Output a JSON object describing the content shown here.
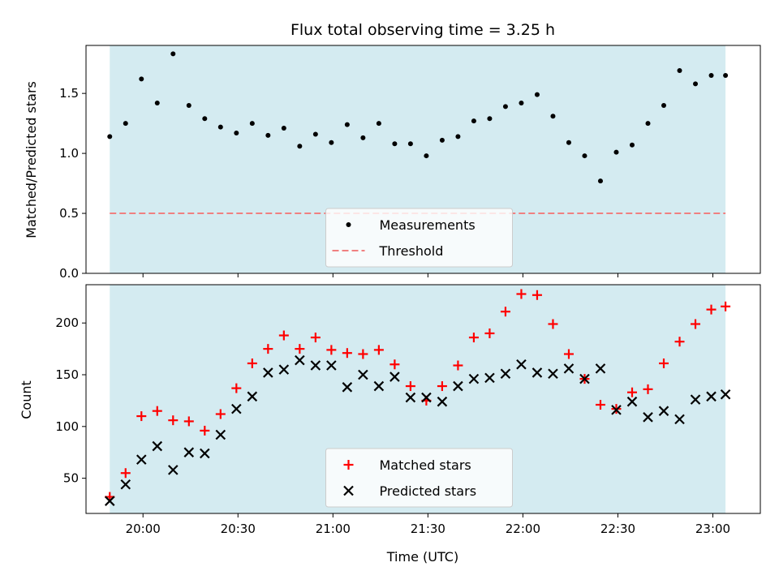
{
  "chart_data": {
    "title": "Flux total observing time = 3.25 h",
    "xlabel": "Time (UTC)",
    "x_ticks": [
      "20:00",
      "20:30",
      "21:00",
      "21:30",
      "22:00",
      "22:30",
      "23:00"
    ],
    "x_tick_minutes": [
      1200,
      1230,
      1260,
      1290,
      1320,
      1350,
      1380
    ],
    "xlim": [
      1182,
      1395
    ],
    "shaded_span": [
      1189.5,
      1384
    ],
    "shade_color": "#d4ebf1",
    "x": [
      1189.5,
      1194.5,
      1199.5,
      1204.5,
      1209.5,
      1214.5,
      1219.5,
      1224.5,
      1229.5,
      1234.5,
      1239.5,
      1244.5,
      1249.5,
      1254.5,
      1259.5,
      1264.5,
      1269.5,
      1274.5,
      1279.5,
      1284.5,
      1289.5,
      1294.5,
      1299.5,
      1304.5,
      1309.5,
      1314.5,
      1319.5,
      1324.5,
      1329.5,
      1334.5,
      1339.5,
      1344.5,
      1349.5,
      1354.5,
      1359.5,
      1364.5,
      1369.5,
      1374.5,
      1379.5,
      1384
    ],
    "panels": [
      {
        "type": "scatter",
        "ylabel": "Matched/Predicted stars",
        "ylim": [
          0,
          1.9
        ],
        "y_ticks": [
          0.0,
          0.5,
          1.0,
          1.5
        ],
        "y_tick_labels": [
          "0.0",
          "0.5",
          "1.0",
          "1.5"
        ],
        "legend_position": "lower-center",
        "series": [
          {
            "name": "Measurements",
            "marker": "dot",
            "color": "#000000",
            "values": [
              1.14,
              1.25,
              1.62,
              1.42,
              1.83,
              1.4,
              1.29,
              1.22,
              1.17,
              1.25,
              1.15,
              1.21,
              1.06,
              1.16,
              1.09,
              1.24,
              1.13,
              1.25,
              1.08,
              1.08,
              0.98,
              1.11,
              1.14,
              1.27,
              1.29,
              1.39,
              1.42,
              1.49,
              1.31,
              1.09,
              0.98,
              0.77,
              1.01,
              1.07,
              1.25,
              1.4,
              1.69,
              1.58,
              1.65,
              1.65
            ]
          }
        ],
        "threshold": {
          "name": "Threshold",
          "value": 0.5,
          "color": "#f08080"
        }
      },
      {
        "type": "scatter",
        "ylabel": "Count",
        "ylim": [
          16,
          237
        ],
        "y_ticks": [
          50,
          100,
          150,
          200
        ],
        "y_tick_labels": [
          "50",
          "100",
          "150",
          "200"
        ],
        "legend_position": "lower-center",
        "series": [
          {
            "name": "Matched stars",
            "marker": "plus",
            "color": "#ff0000",
            "values": [
              32,
              55,
              110,
              115,
              106,
              105,
              96,
              112,
              137,
              161,
              175,
              188,
              175,
              186,
              174,
              171,
              170,
              174,
              160,
              139,
              125,
              139,
              159,
              186,
              190,
              211,
              228,
              227,
              199,
              170,
              146,
              121,
              117,
              133,
              136,
              161,
              182,
              199,
              213,
              216
            ]
          },
          {
            "name": "Predicted stars",
            "marker": "x",
            "color": "#000000",
            "values": [
              28,
              44,
              68,
              81,
              58,
              75,
              74,
              92,
              117,
              129,
              152,
              155,
              164,
              159,
              159,
              138,
              150,
              139,
              148,
              128,
              128,
              124,
              139,
              146,
              147,
              151,
              160,
              152,
              151,
              156,
              146,
              156,
              116,
              124,
              109,
              115,
              107,
              126,
              129,
              131
            ]
          }
        ]
      }
    ]
  }
}
